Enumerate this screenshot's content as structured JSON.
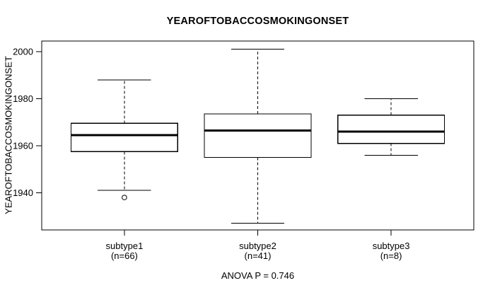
{
  "chart_data": {
    "type": "boxplot",
    "title": "YEAROFTOBACCOSMOKINGONSET",
    "ylabel": "YEAROFTOBACCOSMOKINGONSET",
    "xlabel": "",
    "footnote": "ANOVA P = 0.746",
    "ylim": [
      1924.2,
      2004.5
    ],
    "yticks": [
      {
        "value": 1940,
        "label": "1940"
      },
      {
        "value": 1960,
        "label": "1960"
      },
      {
        "value": 1980,
        "label": "1980"
      },
      {
        "value": 2000,
        "label": "2000"
      }
    ],
    "grid": false,
    "legend": null,
    "groups": [
      {
        "label": "subtype1",
        "sublabel": "(n=66)",
        "n": 66,
        "whisker_low": 1941,
        "q1": 1957.5,
        "median": 1964.5,
        "q3": 1969.5,
        "whisker_high": 1988,
        "outliers": [
          1938
        ]
      },
      {
        "label": "subtype2",
        "sublabel": "(n=41)",
        "n": 41,
        "whisker_low": 1927,
        "q1": 1955,
        "median": 1966.5,
        "q3": 1973.5,
        "whisker_high": 2001,
        "outliers": []
      },
      {
        "label": "subtype3",
        "sublabel": "(n=8)",
        "n": 8,
        "whisker_low": 1956,
        "q1": 1961,
        "median": 1966,
        "q3": 1973,
        "whisker_high": 1980,
        "outliers": []
      }
    ],
    "colors": {
      "background": "#ffffff",
      "line": "#000000",
      "box_fill": "#ffffff"
    }
  }
}
